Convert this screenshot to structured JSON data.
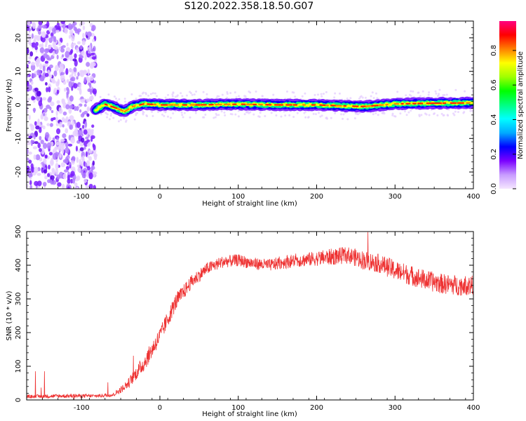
{
  "title": "S120.2022.358.18.50.G07",
  "chart_data": [
    {
      "type": "heatmap",
      "xlabel": "Height of straight line (km)",
      "ylabel": "Frequency (Hz)",
      "xlim": [
        -170,
        400
      ],
      "ylim": [
        -25,
        25
      ],
      "xticks": [
        "-100",
        "0",
        "100",
        "200",
        "300",
        "400"
      ],
      "yticks": [
        "-20",
        "-10",
        "0",
        "10",
        "20"
      ],
      "colorbar": {
        "label": "Normalized spectral amplitude",
        "range": [
          0,
          0.97
        ],
        "ticks": [
          "0.0",
          "0.2",
          "0.4",
          "0.6",
          "0.8"
        ],
        "colors": [
          "#f5e6ff",
          "#c89cff",
          "#7a00ff",
          "#0000ff",
          "#00aaff",
          "#00ffff",
          "#00ff80",
          "#00ff00",
          "#a0ff00",
          "#ffff00",
          "#ff8000",
          "#ff0000",
          "#ff0080"
        ]
      },
      "grid": false,
      "noise_region_x": [
        -170,
        -82
      ],
      "signal_line_frequency_hz": [
        {
          "x": -82,
          "y": -1.5
        },
        {
          "x": -70,
          "y": 0.2
        },
        {
          "x": -55,
          "y": -1.0
        },
        {
          "x": -45,
          "y": -2.0
        },
        {
          "x": -35,
          "y": -0.5
        },
        {
          "x": -20,
          "y": 0.3
        },
        {
          "x": 0,
          "y": 0.0
        },
        {
          "x": 50,
          "y": 0.0
        },
        {
          "x": 100,
          "y": 0.2
        },
        {
          "x": 150,
          "y": 0.0
        },
        {
          "x": 200,
          "y": 0.0
        },
        {
          "x": 260,
          "y": -0.5
        },
        {
          "x": 300,
          "y": 0.3
        },
        {
          "x": 350,
          "y": 0.5
        },
        {
          "x": 400,
          "y": 0.6
        }
      ]
    },
    {
      "type": "line",
      "xlabel": "Height of straight line (km)",
      "ylabel": "SNR (10 * v/v)",
      "xlim": [
        -170,
        400
      ],
      "ylim": [
        0,
        500
      ],
      "xticks": [
        "-100",
        "0",
        "100",
        "200",
        "300",
        "400"
      ],
      "yticks": [
        "0",
        "100",
        "200",
        "300",
        "400",
        "500"
      ],
      "grid": false,
      "series": [
        {
          "color": "#ee3333",
          "x": [
            -170,
            -120,
            -80,
            -60,
            -50,
            -40,
            -30,
            -20,
            -10,
            0,
            10,
            20,
            30,
            40,
            50,
            60,
            70,
            80,
            100,
            120,
            140,
            160,
            180,
            200,
            220,
            240,
            260,
            280,
            300,
            320,
            340,
            360,
            380,
            400
          ],
          "values": [
            10,
            12,
            12,
            15,
            30,
            50,
            80,
            110,
            150,
            190,
            240,
            290,
            320,
            350,
            370,
            390,
            400,
            410,
            415,
            405,
            400,
            410,
            415,
            420,
            425,
            430,
            415,
            405,
            385,
            370,
            355,
            345,
            340,
            340
          ],
          "noise_amplitude": [
            5,
            6,
            5,
            6,
            10,
            15,
            20,
            25,
            25,
            25,
            25,
            25,
            22,
            20,
            20,
            18,
            18,
            18,
            18,
            18,
            18,
            20,
            20,
            22,
            25,
            25,
            28,
            28,
            30,
            30,
            30,
            30,
            30,
            30
          ]
        }
      ]
    }
  ]
}
